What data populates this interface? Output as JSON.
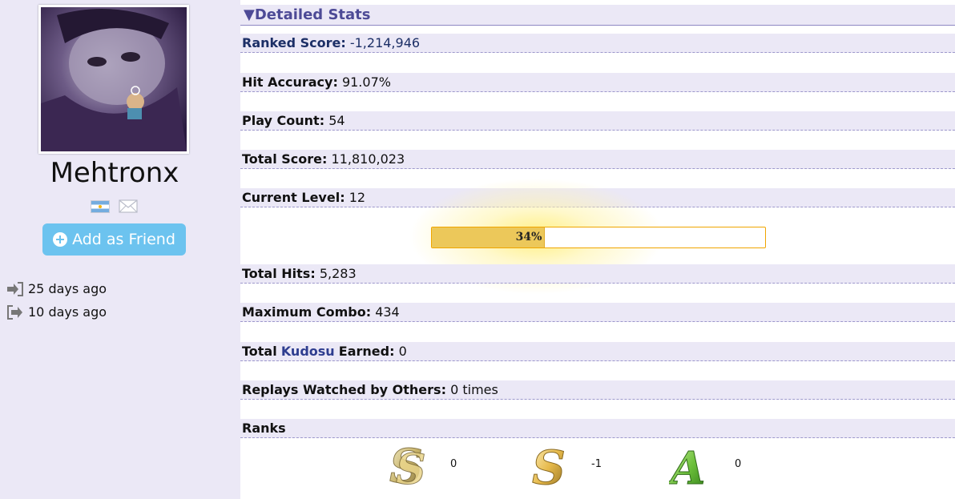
{
  "profile": {
    "username": "Mehtronx",
    "country_flag": "flag-argentina-icon",
    "add_friend_label": "Add as Friend",
    "activity": [
      {
        "icon": "sign-in-icon",
        "text": "25 days ago"
      },
      {
        "icon": "sign-out-icon",
        "text": "10 days ago"
      }
    ]
  },
  "stats": {
    "section_title": "▼Detailed Stats",
    "ranked_score": {
      "label": "Ranked Score",
      "value": "-1,214,946"
    },
    "hit_accuracy": {
      "label": "Hit Accuracy",
      "value": "91.07%"
    },
    "play_count": {
      "label": "Play Count",
      "value": "54"
    },
    "total_score": {
      "label": "Total Score",
      "value": "11,810,023"
    },
    "current_level": {
      "label": "Current Level",
      "value": "12"
    },
    "level_progress": {
      "text": "34%",
      "fraction": 0.34
    },
    "total_hits": {
      "label": "Total Hits",
      "value": "5,283"
    },
    "max_combo": {
      "label": "Maximum Combo",
      "value": "434"
    },
    "kudosu": {
      "label_prefix": "Total",
      "link": "Kudosu",
      "label_suffix": "Earned",
      "value": "0"
    },
    "replays": {
      "label": "Replays Watched by Others",
      "value": "0 times"
    },
    "ranks": {
      "label": "Ranks",
      "items": [
        {
          "icon": "rank-ss-icon",
          "count": "0"
        },
        {
          "icon": "rank-s-icon",
          "count": "-1"
        },
        {
          "icon": "rank-a-icon",
          "count": "0"
        }
      ]
    }
  },
  "colors": {
    "panel_bg": "#ebe8f6",
    "header_text": "#4d4a96",
    "friend_button": "#6cc3ef",
    "level_fill": "#ecc85a",
    "level_border": "#f0a500",
    "kudosu_link": "#2e3d8f"
  }
}
